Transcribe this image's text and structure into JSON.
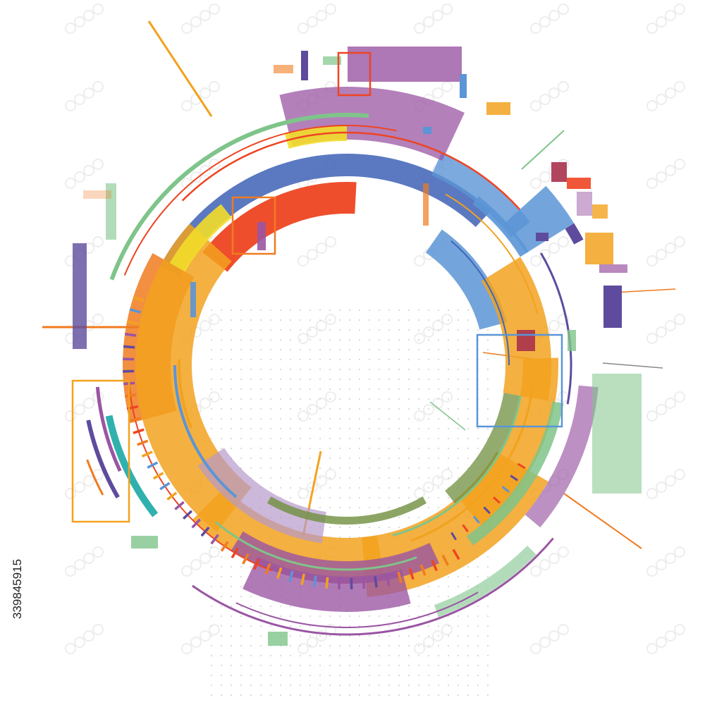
{
  "image": {
    "stock_id": "339845915",
    "subject": "abstract-tech-circle",
    "palette": {
      "red": "#ee4422",
      "orange": "#f07b20",
      "amber": "#f2a21e",
      "yellow": "#f2dd2a",
      "blue": "#4466b8",
      "sky": "#5b95d6",
      "purple": "#9a55a3",
      "lavender": "#b69acb",
      "violet": "#5e4b9e",
      "green": "#7fc48a",
      "olive": "#6f8f3e",
      "teal": "#1aa8a4",
      "maroon": "#a8324d",
      "watermark": "#d7d7d7",
      "dots": "#cfcfcf"
    }
  }
}
